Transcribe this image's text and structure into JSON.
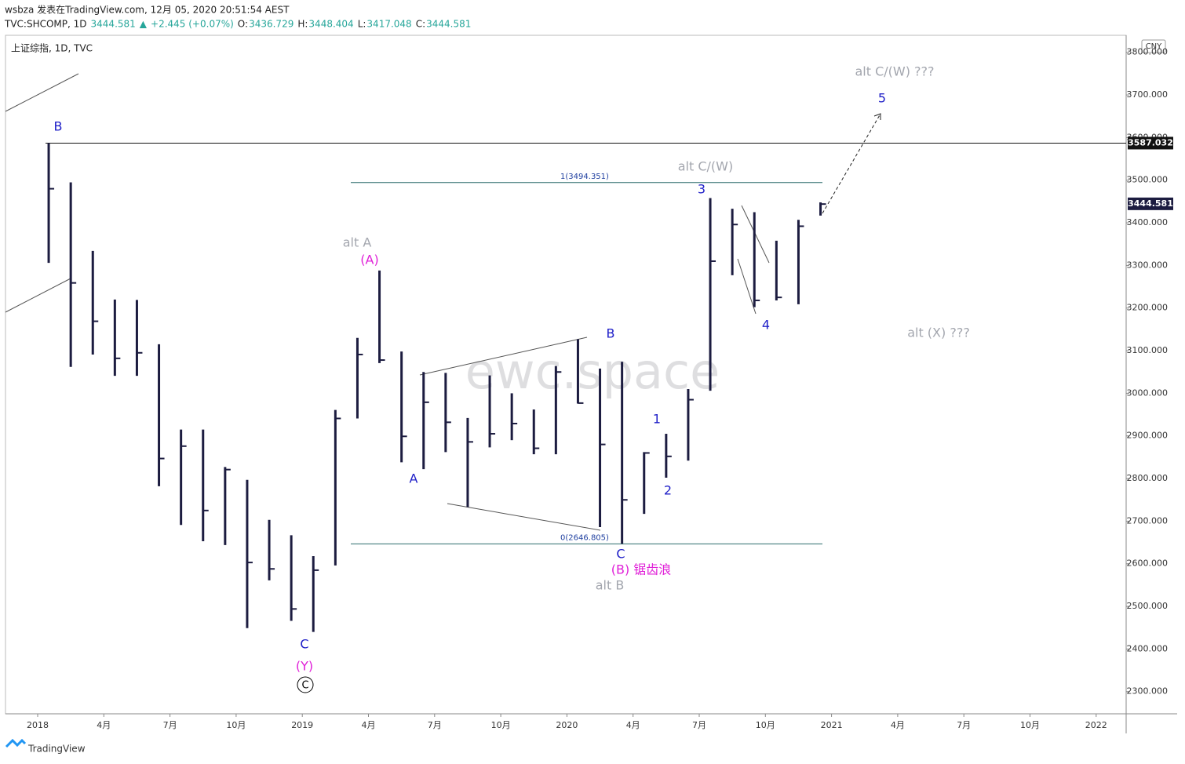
{
  "header": {
    "byline": "wsbza 发表在TradingView.com, 12月 05, 2020 20:51:54 AEST",
    "quote": [
      "TVC:SHCOMP, 1D",
      "3444.581",
      "▲",
      "+2.445 (+0.07%)",
      "O:",
      "3436.729",
      "H:",
      "3448.404",
      "L:",
      "3417.048",
      "C:",
      "3444.581"
    ]
  },
  "chart_data": {
    "type": "ohlc",
    "legend": "上证综指, 1D, TVC",
    "currency": "CNY",
    "watermark": "ewc.space",
    "brand": "TradingView",
    "color": "#1c1c40",
    "x": [
      "2018-01",
      "2018-02",
      "2018-03",
      "2018-04",
      "2018-05",
      "2018-06",
      "2018-07",
      "2018-08",
      "2018-09",
      "2018-10",
      "2018-11",
      "2018-12",
      "2019-01",
      "2019-02",
      "2019-03",
      "2019-04",
      "2019-05",
      "2019-06",
      "2019-07",
      "2019-08",
      "2019-09",
      "2019-10",
      "2019-11",
      "2019-12",
      "2020-01",
      "2020-02",
      "2020-03",
      "2020-04",
      "2020-05",
      "2020-06",
      "2020-07",
      "2020-08",
      "2020-09",
      "2020-10",
      "2020-11",
      "2020-12"
    ],
    "high": [
      3587,
      3495,
      3334,
      3220,
      3219,
      3115,
      2915,
      2915,
      2827,
      2797,
      2703,
      2667,
      2618,
      2961,
      3130,
      3288,
      3098,
      3050,
      3048,
      2942,
      3042,
      3000,
      2962,
      3064,
      3127,
      3058,
      3074,
      2862,
      2905,
      3010,
      3458,
      3433,
      3425,
      3358,
      3407,
      3448
    ],
    "low": [
      3306,
      3062,
      3091,
      3041,
      3041,
      2782,
      2691,
      2653,
      2644,
      2449,
      2561,
      2466,
      2440,
      2596,
      2941,
      3071,
      2838,
      2822,
      2862,
      2733,
      2873,
      2890,
      2857,
      2857,
      2976,
      2686,
      2647,
      2717,
      2802,
      2842,
      3006,
      3277,
      3202,
      3218,
      3209,
      3417
    ],
    "close": [
      3480,
      3259,
      3169,
      3082,
      3095,
      2847,
      2876,
      2725,
      2821,
      2603,
      2588,
      2494,
      2585,
      2941,
      3091,
      3078,
      2899,
      2979,
      2932,
      2886,
      2905,
      2929,
      2871,
      3050,
      2977,
      2880,
      2750,
      2860,
      2852,
      2985,
      3310,
      3396,
      3218,
      3225,
      3392,
      3444
    ],
    "ylim": [
      2248,
      3840
    ],
    "yticks": [
      {
        "value": 2300,
        "label": "2300.000"
      },
      {
        "value": 2400,
        "label": "2400.000"
      },
      {
        "value": 2500,
        "label": "2500.000"
      },
      {
        "value": 2600,
        "label": "2600.000"
      },
      {
        "value": 2700,
        "label": "2700.000"
      },
      {
        "value": 2800,
        "label": "2800.000"
      },
      {
        "value": 2900,
        "label": "2900.000"
      },
      {
        "value": 3000,
        "label": "3000.000"
      },
      {
        "value": 3100,
        "label": "3100.000"
      },
      {
        "value": 3200,
        "label": "3200.000"
      },
      {
        "value": 3300,
        "label": "3300.000"
      },
      {
        "value": 3400,
        "label": "3400.000"
      },
      {
        "value": 3500,
        "label": "3500.000"
      },
      {
        "value": 3600,
        "label": "3600.000"
      },
      {
        "value": 3700,
        "label": "3700.000"
      },
      {
        "value": 3800,
        "label": "3800.000"
      }
    ],
    "xticks": [
      {
        "value": "2018-01",
        "label": "2018"
      },
      {
        "value": "2018-04",
        "label": "4月"
      },
      {
        "value": "2018-07",
        "label": "7月"
      },
      {
        "value": "2018-10",
        "label": "10月"
      },
      {
        "value": "2019-01",
        "label": "2019"
      },
      {
        "value": "2019-04",
        "label": "4月"
      },
      {
        "value": "2019-07",
        "label": "7月"
      },
      {
        "value": "2019-10",
        "label": "10月"
      },
      {
        "value": "2020-01",
        "label": "2020"
      },
      {
        "value": "2020-04",
        "label": "4月"
      },
      {
        "value": "2020-07",
        "label": "7月"
      },
      {
        "value": "2020-10",
        "label": "10月"
      },
      {
        "value": "2021-01",
        "label": "2021"
      },
      {
        "value": "2021-04",
        "label": "4月"
      },
      {
        "value": "2021-07",
        "label": "7月"
      },
      {
        "value": "2021-10",
        "label": "10月"
      },
      {
        "value": "2022-01",
        "label": "2022"
      }
    ],
    "levels": [
      {
        "value": 3587.032,
        "label": "3587.032"
      }
    ],
    "last_price": 3444.581,
    "fib": [
      {
        "value": 3494.351,
        "label": "1(3494.351)"
      },
      {
        "value": 2646.805,
        "label": "0(2646.805)"
      }
    ],
    "annotations": [
      {
        "text": "B",
        "color": "#2020c8"
      },
      {
        "text": "alt A",
        "color": "#a3a6ae"
      },
      {
        "text": "(A)",
        "color": "#e020d8"
      },
      {
        "text": "A",
        "color": "#2020c8"
      },
      {
        "text": "B",
        "color": "#2020c8"
      },
      {
        "text": "C",
        "color": "#2020c8"
      },
      {
        "text": "(B) 锯齿浪",
        "color": "#e020d8"
      },
      {
        "text": "alt B",
        "color": "#a3a6ae"
      },
      {
        "text": "alt C/(W)",
        "color": "#a3a6ae"
      },
      {
        "text": "3",
        "color": "#2020c8"
      },
      {
        "text": "4",
        "color": "#2020c8"
      },
      {
        "text": "1",
        "color": "#2020c8"
      },
      {
        "text": "2",
        "color": "#2020c8"
      },
      {
        "text": "5",
        "color": "#2020c8"
      },
      {
        "text": "alt C/(W) ???",
        "color": "#a3a6ae"
      },
      {
        "text": "alt (X) ???",
        "color": "#a3a6ae"
      },
      {
        "text": "C",
        "color": "#2020c8"
      },
      {
        "text": "(Y)",
        "color": "#e020d8"
      },
      {
        "text": "C",
        "color": "#000000"
      }
    ]
  }
}
